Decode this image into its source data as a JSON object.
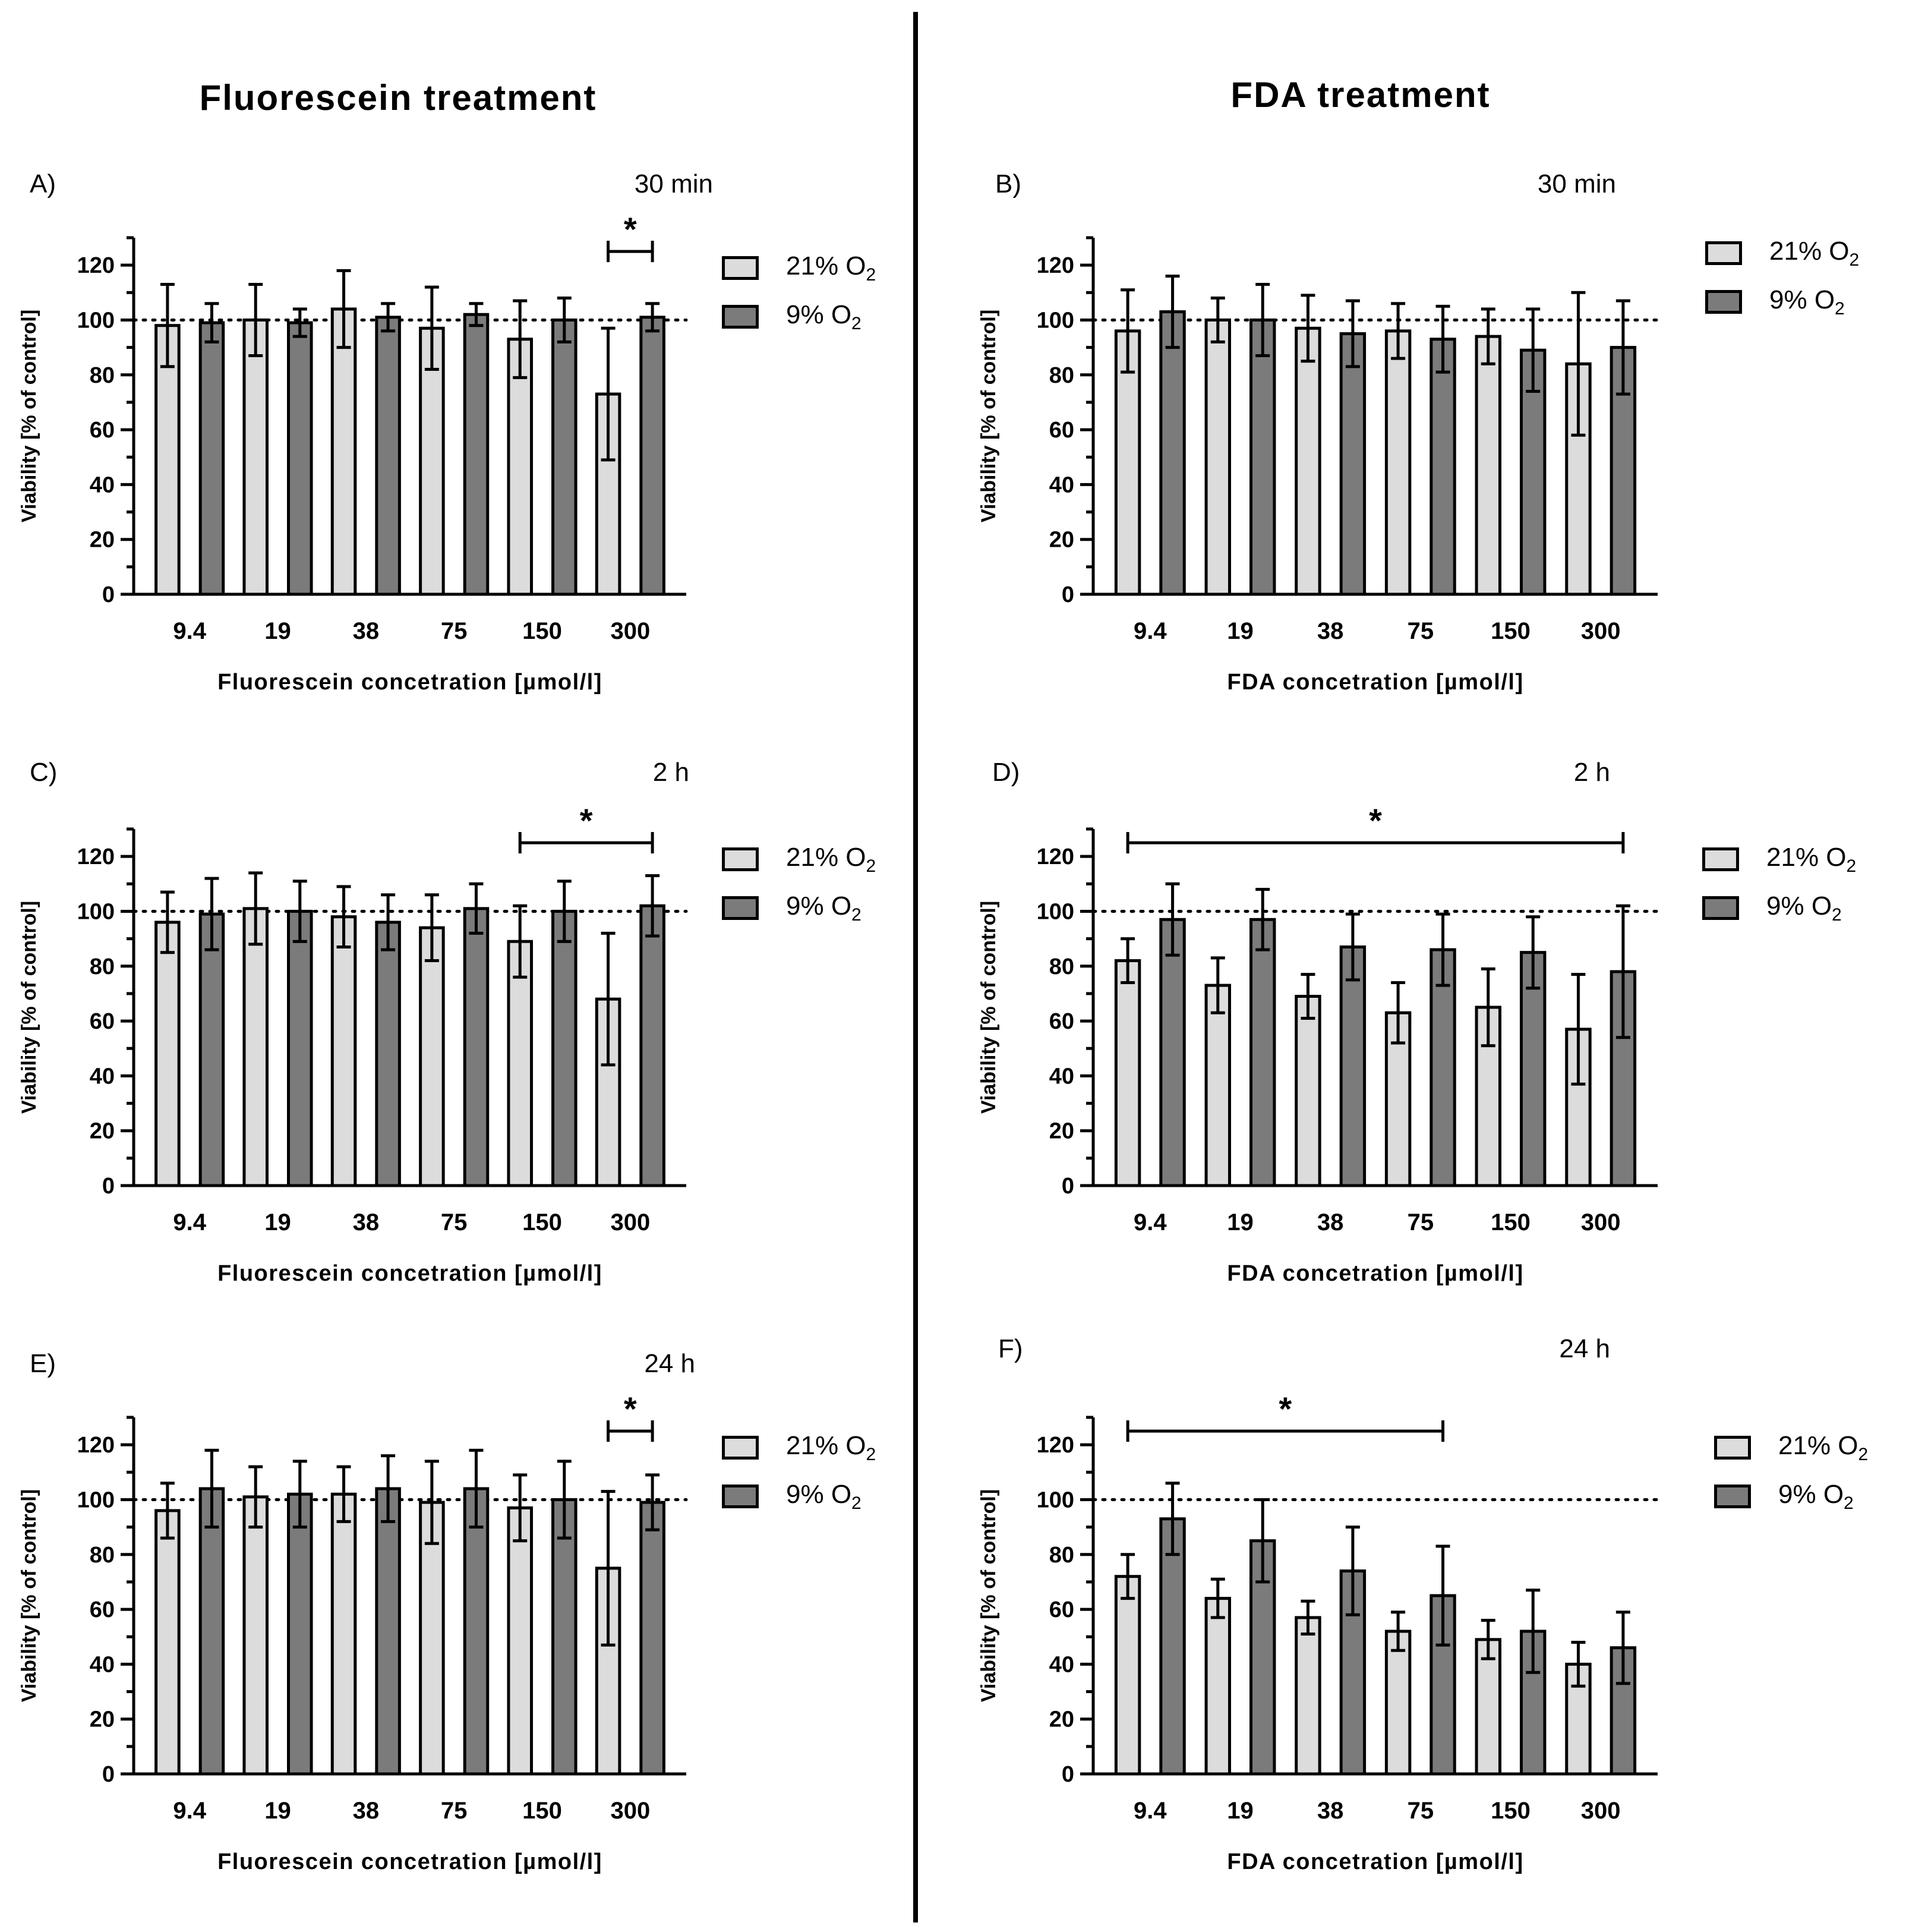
{
  "column_titles": {
    "left": "Fluorescein treatment",
    "right": "FDA treatment"
  },
  "legend": {
    "series": [
      {
        "pct": "21% O",
        "sub": "2",
        "color": "#dcdcdc"
      },
      {
        "pct": "9% O",
        "sub": "2",
        "color": "#7b7b7b"
      }
    ]
  },
  "chart_data": [
    {
      "panel": "A)",
      "time": "30 min",
      "type": "bar",
      "categories": [
        "9.4",
        "19",
        "38",
        "75",
        "150",
        "300"
      ],
      "series": [
        {
          "name": "21% O2",
          "values": [
            98,
            100,
            104,
            97,
            93,
            73
          ],
          "errors": [
            15,
            13,
            14,
            15,
            14,
            24
          ]
        },
        {
          "name": "9% O2",
          "values": [
            99,
            99,
            101,
            102,
            100,
            101
          ],
          "errors": [
            7,
            5,
            5,
            4,
            8,
            5
          ]
        }
      ],
      "ylabel": "Viability [% of control]",
      "xlabel": "Fluorescein concetration [µmol/l]",
      "ylim": [
        0,
        130
      ],
      "yticks": [
        0,
        20,
        40,
        60,
        80,
        100,
        120
      ],
      "reference_line": 100,
      "significance": [
        {
          "label": "*",
          "from": 5,
          "to": 5
        }
      ]
    },
    {
      "panel": "B)",
      "time": "30 min",
      "type": "bar",
      "categories": [
        "9.4",
        "19",
        "38",
        "75",
        "150",
        "300"
      ],
      "series": [
        {
          "name": "21% O2",
          "values": [
            96,
            100,
            97,
            96,
            94,
            84
          ],
          "errors": [
            15,
            8,
            12,
            10,
            10,
            26
          ]
        },
        {
          "name": "9% O2",
          "values": [
            103,
            100,
            95,
            93,
            89,
            90
          ],
          "errors": [
            13,
            13,
            12,
            12,
            15,
            17
          ]
        }
      ],
      "ylabel": "Viability [% of control]",
      "xlabel": "FDA concetration [µmol/l]",
      "ylim": [
        0,
        130
      ],
      "yticks": [
        0,
        20,
        40,
        60,
        80,
        100,
        120
      ],
      "reference_line": 100,
      "significance": []
    },
    {
      "panel": "C)",
      "time": "2 h",
      "type": "bar",
      "categories": [
        "9.4",
        "19",
        "38",
        "75",
        "150",
        "300"
      ],
      "series": [
        {
          "name": "21% O2",
          "values": [
            96,
            101,
            98,
            94,
            89,
            68
          ],
          "errors": [
            11,
            13,
            11,
            12,
            13,
            24
          ]
        },
        {
          "name": "9% O2",
          "values": [
            99,
            100,
            96,
            101,
            100,
            102
          ],
          "errors": [
            13,
            11,
            10,
            9,
            11,
            11
          ]
        }
      ],
      "ylabel": "Viability [% of control]",
      "xlabel": "Fluorescein concetration [µmol/l]",
      "ylim": [
        0,
        130
      ],
      "yticks": [
        0,
        20,
        40,
        60,
        80,
        100,
        120
      ],
      "reference_line": 100,
      "significance": [
        {
          "label": "*",
          "from": 4,
          "to": 5
        }
      ]
    },
    {
      "panel": "D)",
      "time": "2 h",
      "type": "bar",
      "categories": [
        "9.4",
        "19",
        "38",
        "75",
        "150",
        "300"
      ],
      "series": [
        {
          "name": "21% O2",
          "values": [
            82,
            73,
            69,
            63,
            65,
            57
          ],
          "errors": [
            8,
            10,
            8,
            11,
            14,
            20
          ]
        },
        {
          "name": "9% O2",
          "values": [
            97,
            97,
            87,
            86,
            85,
            78
          ],
          "errors": [
            13,
            11,
            12,
            13,
            13,
            24
          ]
        }
      ],
      "ylabel": "Viability [% of control]",
      "xlabel": "FDA concetration [µmol/l]",
      "ylim": [
        0,
        130
      ],
      "yticks": [
        0,
        20,
        40,
        60,
        80,
        100,
        120
      ],
      "reference_line": 100,
      "significance": [
        {
          "label": "*",
          "from": 0,
          "to": 5
        }
      ]
    },
    {
      "panel": "E)",
      "time": "24 h",
      "type": "bar",
      "categories": [
        "9.4",
        "19",
        "38",
        "75",
        "150",
        "300"
      ],
      "series": [
        {
          "name": "21% O2",
          "values": [
            96,
            101,
            102,
            99,
            97,
            75
          ],
          "errors": [
            10,
            11,
            10,
            15,
            12,
            28
          ]
        },
        {
          "name": "9% O2",
          "values": [
            104,
            102,
            104,
            104,
            100,
            99
          ],
          "errors": [
            14,
            12,
            12,
            14,
            14,
            10
          ]
        }
      ],
      "ylabel": "Viability [% of control]",
      "xlabel": "Fluorescein concetration [µmol/l]",
      "ylim": [
        0,
        130
      ],
      "yticks": [
        0,
        20,
        40,
        60,
        80,
        100,
        120
      ],
      "reference_line": 100,
      "significance": [
        {
          "label": "*",
          "from": 5,
          "to": 5
        }
      ]
    },
    {
      "panel": "F)",
      "time": "24 h",
      "type": "bar",
      "categories": [
        "9.4",
        "19",
        "38",
        "75",
        "150",
        "300"
      ],
      "series": [
        {
          "name": "21% O2",
          "values": [
            72,
            64,
            57,
            52,
            49,
            40
          ],
          "errors": [
            8,
            7,
            6,
            7,
            7,
            8
          ]
        },
        {
          "name": "9% O2",
          "values": [
            93,
            85,
            74,
            65,
            52,
            46
          ],
          "errors": [
            13,
            15,
            16,
            18,
            15,
            13
          ]
        }
      ],
      "ylabel": "Viability [% of control]",
      "xlabel": "FDA concetration [µmol/l]",
      "ylim": [
        0,
        130
      ],
      "yticks": [
        0,
        20,
        40,
        60,
        80,
        100,
        120
      ],
      "reference_line": 100,
      "significance": [
        {
          "label": "*",
          "from": 0,
          "to": 3
        }
      ]
    }
  ]
}
